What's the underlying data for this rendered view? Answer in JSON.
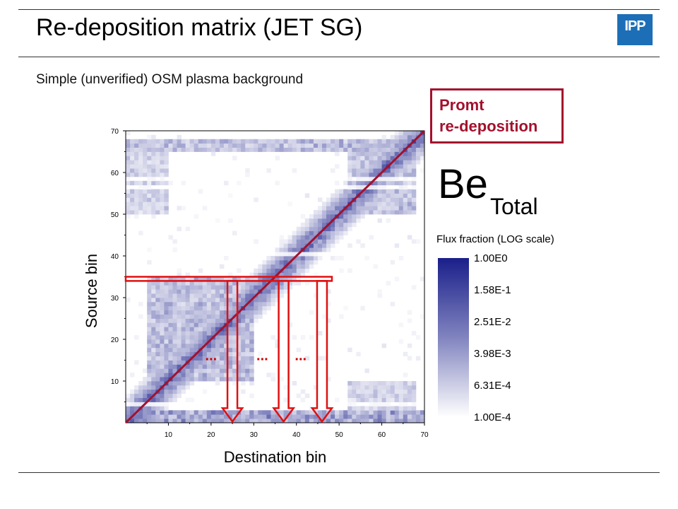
{
  "slide": {
    "title": "Re-deposition matrix (JET SG)",
    "subtitle": "Simple (unverified) OSM plasma background",
    "logo_text": "IPP"
  },
  "annotations": {
    "promt_line1": "Promt",
    "promt_line2": "re-deposition",
    "element": "Be",
    "element_subscript": "Total",
    "colorbar_title": "Flux fraction (LOG scale)",
    "ellipsis": "..."
  },
  "colors": {
    "accent_red": "#a3112d",
    "arrow_red": "#e01010",
    "matrix_max": "#1a1f8a",
    "logo_blue": "#1c6fb6"
  },
  "chart_data": {
    "type": "heatmap",
    "xlabel": "Destination bin",
    "ylabel": "Source bin",
    "xlim": [
      0,
      70
    ],
    "ylim": [
      0,
      70
    ],
    "x_ticks": [
      10,
      20,
      30,
      40,
      50,
      60,
      70
    ],
    "y_ticks": [
      10,
      20,
      30,
      40,
      50,
      60,
      70
    ],
    "color_scale": "log",
    "colorbar_ticks": [
      "1.00E0",
      "1.58E-1",
      "2.51E-2",
      "3.98E-3",
      "6.31E-4",
      "1.00E-4"
    ],
    "colorbar_range": [
      0.0001,
      1
    ],
    "diagonal_line": {
      "from": [
        0,
        0
      ],
      "to": [
        70,
        70
      ],
      "label": "Promt re-deposition"
    },
    "highlight_source_bins": [
      34,
      35
    ],
    "highlight_destination_bins": [
      25,
      37,
      46
    ],
    "regions": [
      {
        "desc": "diagonal band",
        "x": [
          0,
          70
        ],
        "y": [
          0,
          70
        ],
        "level": 0.8
      },
      {
        "desc": "bottom row",
        "x": [
          0,
          70
        ],
        "y": [
          0,
          3
        ],
        "level": 0.7
      },
      {
        "desc": "top row",
        "x": [
          0,
          70
        ],
        "y": [
          65,
          68
        ],
        "level": 0.5
      },
      {
        "desc": "lower-left block",
        "x": [
          5,
          30
        ],
        "y": [
          10,
          35
        ],
        "level": 0.5
      },
      {
        "desc": "upper-left block",
        "x": [
          0,
          10
        ],
        "y": [
          50,
          68
        ],
        "level": 0.35
      },
      {
        "desc": "lower-right block",
        "x": [
          52,
          68
        ],
        "y": [
          3,
          10
        ],
        "level": 0.35
      },
      {
        "desc": "upper-right block",
        "x": [
          52,
          68
        ],
        "y": [
          50,
          68
        ],
        "level": 0.45
      }
    ]
  }
}
